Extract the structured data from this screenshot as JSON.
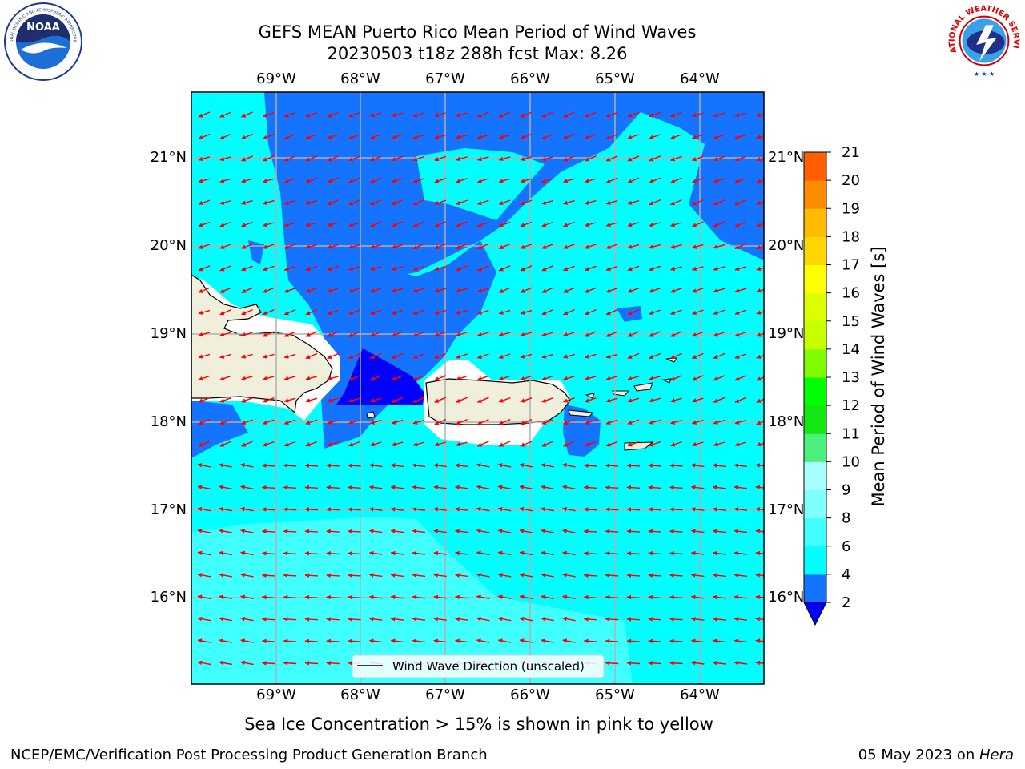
{
  "title_line1": "GEFS MEAN Puerto Rico Mean Period of Wind Waves",
  "title_line2": "20230503 t18z 288h fcst   Max: 8.26",
  "map": {
    "lon_ticks": [
      "69°W",
      "68°W",
      "67°W",
      "66°W",
      "65°W",
      "64°W"
    ],
    "lat_ticks": [
      "21°N",
      "20°N",
      "19°N",
      "18°N",
      "17°N",
      "16°N"
    ],
    "legend_label": "Wind Wave Direction (unscaled)",
    "arrow_color": "#ff0000",
    "land_color": "#efefdc",
    "grid": true
  },
  "colorbar": {
    "label": "Mean Period of Wind Waves [s]",
    "ticks": [
      "2",
      "4",
      "6",
      "8",
      "9",
      "10",
      "11",
      "12",
      "13",
      "14",
      "15",
      "16",
      "17",
      "18",
      "19",
      "20",
      "21"
    ],
    "colors": [
      "#1473ff",
      "#00ffff",
      "#40ffff",
      "#80ffff",
      "#a8ffff",
      "#4cf07c",
      "#14e814",
      "#00ff00",
      "#7ffc00",
      "#c8ff00",
      "#dcff00",
      "#ffff00",
      "#ffd700",
      "#ffbb00",
      "#ff8c00",
      "#ff5f00",
      "#ff3500",
      "#ff0000"
    ],
    "under_color": "#0000ff"
  },
  "ice_note": "Sea Ice Concentration > 15% is shown in pink to yellow",
  "footer_left": "NCEP/EMC/Verification Post Processing Product Generation Branch",
  "footer_right_prefix": "05 May 2023 on ",
  "footer_right_host": "Hera",
  "logos": {
    "noaa_text": "NOAA",
    "noaa_ring": "NATIONAL OCEANIC AND ATMOSPHERIC ADMINISTRATION",
    "noaa_ring_bottom": "U.S. DEPARTMENT OF COMMERCE",
    "nws_ring": "NATIONAL WEATHER SERVICE"
  }
}
